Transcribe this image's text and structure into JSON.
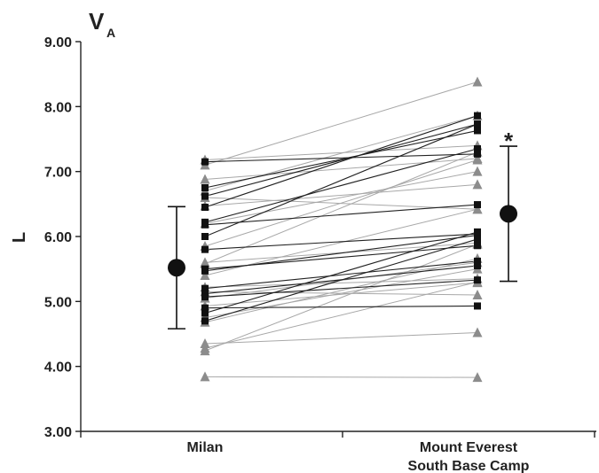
{
  "chart_data": {
    "type": "line",
    "title": "V",
    "title_subscript": "A",
    "ylabel": "L",
    "xlabel": "",
    "ylim": [
      3.0,
      9.0
    ],
    "yticks": [
      "3.00",
      "4.00",
      "5.00",
      "6.00",
      "7.00",
      "8.00",
      "9.00"
    ],
    "categories": [
      {
        "line1": "Milan",
        "line2": ""
      },
      {
        "line1": "Mount Everest",
        "line2": "South Base Camp"
      }
    ],
    "annotation": "*",
    "summary": {
      "means": [
        5.52,
        6.35
      ],
      "upper": [
        6.46,
        7.39
      ],
      "lower": [
        4.58,
        5.31
      ]
    },
    "colors": {
      "triangle_series": "#8c8c8c",
      "triangle_line": "#a8a8a8",
      "square_series": "#111111",
      "square_line": "#222222",
      "summary": "#111111",
      "axis": "#222222"
    },
    "series": [
      {
        "marker": "triangle",
        "values": [
          7.18,
          7.4
        ]
      },
      {
        "marker": "triangle",
        "values": [
          7.1,
          8.38
        ]
      },
      {
        "marker": "triangle",
        "values": [
          6.88,
          7.2
        ]
      },
      {
        "marker": "triangle",
        "values": [
          6.7,
          7.86
        ]
      },
      {
        "marker": "triangle",
        "values": [
          6.6,
          6.42
        ]
      },
      {
        "marker": "triangle",
        "values": [
          6.47,
          6.8
        ]
      },
      {
        "marker": "triangle",
        "values": [
          6.2,
          7.0
        ]
      },
      {
        "marker": "triangle",
        "values": [
          5.85,
          7.18
        ]
      },
      {
        "marker": "triangle",
        "values": [
          5.6,
          5.9
        ]
      },
      {
        "marker": "triangle",
        "values": [
          5.58,
          7.3
        ]
      },
      {
        "marker": "triangle",
        "values": [
          5.4,
          6.42
        ]
      },
      {
        "marker": "triangle",
        "values": [
          5.22,
          5.35
        ]
      },
      {
        "marker": "triangle",
        "values": [
          5.15,
          5.1
        ]
      },
      {
        "marker": "triangle",
        "values": [
          5.05,
          5.6
        ]
      },
      {
        "marker": "triangle",
        "values": [
          4.93,
          5.29
        ]
      },
      {
        "marker": "triangle",
        "values": [
          4.75,
          5.5
        ]
      },
      {
        "marker": "triangle",
        "values": [
          4.68,
          5.66
        ]
      },
      {
        "marker": "triangle",
        "values": [
          4.35,
          4.52
        ]
      },
      {
        "marker": "triangle",
        "values": [
          4.28,
          5.3
        ]
      },
      {
        "marker": "triangle",
        "values": [
          4.24,
          5.88
        ]
      },
      {
        "marker": "triangle",
        "values": [
          3.84,
          3.83
        ]
      },
      {
        "marker": "square",
        "values": [
          7.15,
          7.27
        ]
      },
      {
        "marker": "square",
        "values": [
          6.75,
          7.63
        ]
      },
      {
        "marker": "square",
        "values": [
          6.62,
          7.73
        ]
      },
      {
        "marker": "square",
        "values": [
          6.45,
          7.86
        ]
      },
      {
        "marker": "square",
        "values": [
          6.22,
          7.35
        ]
      },
      {
        "marker": "square",
        "values": [
          6.18,
          6.49
        ]
      },
      {
        "marker": "square",
        "values": [
          6.0,
          7.73
        ]
      },
      {
        "marker": "square",
        "values": [
          5.8,
          6.04
        ]
      },
      {
        "marker": "square",
        "values": [
          5.5,
          5.86
        ]
      },
      {
        "marker": "square",
        "values": [
          5.47,
          6.02
        ]
      },
      {
        "marker": "square",
        "values": [
          5.2,
          5.62
        ]
      },
      {
        "marker": "square",
        "values": [
          5.12,
          5.55
        ]
      },
      {
        "marker": "square",
        "values": [
          5.07,
          5.33
        ]
      },
      {
        "marker": "square",
        "values": [
          4.9,
          4.93
        ]
      },
      {
        "marker": "square",
        "values": [
          4.82,
          6.07
        ]
      },
      {
        "marker": "square",
        "values": [
          4.7,
          5.96
        ]
      }
    ]
  }
}
